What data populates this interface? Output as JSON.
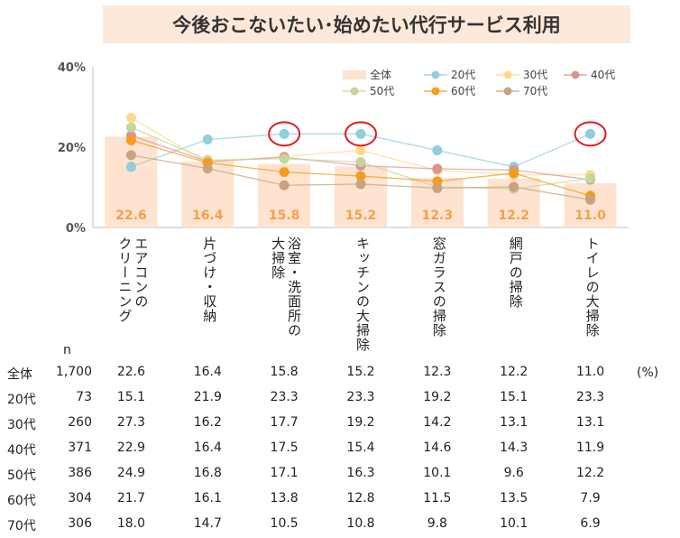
{
  "title": "今後おこないたい･始めたい代行サービス利用",
  "chart_data": {
    "type": "line",
    "categories": [
      "エアコンの\nクリーニング",
      "片づけ・収納",
      "浴室・洗面所の\n大掃除",
      "キッチンの大掃除",
      "窓ガラスの掃除",
      "網戸の掃除",
      "トイレの大掃除"
    ],
    "ylim": [
      0,
      40
    ],
    "yticks": [
      "0%",
      "20%",
      "40%"
    ],
    "grid": false,
    "legend_position": "top-right",
    "bar_series": {
      "name": "全体",
      "values": [
        22.6,
        16.4,
        15.8,
        15.2,
        12.3,
        12.2,
        11.0
      ],
      "color": "#fde3d0",
      "label_color": "#f5a04a"
    },
    "bar_labels": [
      "22.6",
      "16.4",
      "15.8",
      "15.2",
      "12.3",
      "12.2",
      "11.0"
    ],
    "series": [
      {
        "name": "20代",
        "values": [
          15.1,
          21.9,
          23.3,
          23.3,
          19.2,
          15.1,
          23.3
        ],
        "color": "#92cddc"
      },
      {
        "name": "30代",
        "values": [
          27.3,
          16.2,
          17.7,
          19.2,
          14.2,
          13.1,
          13.1
        ],
        "color": "#ffd98a"
      },
      {
        "name": "40代",
        "values": [
          22.9,
          16.4,
          17.5,
          15.4,
          14.6,
          14.3,
          11.9
        ],
        "color": "#d99594"
      },
      {
        "name": "50代",
        "values": [
          24.9,
          16.8,
          17.1,
          16.3,
          10.1,
          9.6,
          12.2
        ],
        "color": "#c3d69b"
      },
      {
        "name": "60代",
        "values": [
          21.7,
          16.1,
          13.8,
          12.8,
          11.5,
          13.5,
          7.9
        ],
        "color": "#f79b1a"
      },
      {
        "name": "70代",
        "values": [
          18.0,
          14.7,
          10.5,
          10.8,
          9.8,
          10.1,
          6.9
        ],
        "color": "#c9a27e"
      }
    ],
    "highlighted_categories": [
      2,
      3,
      6
    ],
    "highlight_color": "#e0191e"
  },
  "table": {
    "n_header": "n",
    "unit": "(%)",
    "rows": [
      {
        "label": "全体",
        "n": "1,700",
        "values": [
          "22.6",
          "16.4",
          "15.8",
          "15.2",
          "12.3",
          "12.2",
          "11.0"
        ]
      },
      {
        "label": "20代",
        "n": "73",
        "values": [
          "15.1",
          "21.9",
          "23.3",
          "23.3",
          "19.2",
          "15.1",
          "23.3"
        ]
      },
      {
        "label": "30代",
        "n": "260",
        "values": [
          "27.3",
          "16.2",
          "17.7",
          "19.2",
          "14.2",
          "13.1",
          "13.1"
        ]
      },
      {
        "label": "40代",
        "n": "371",
        "values": [
          "22.9",
          "16.4",
          "17.5",
          "15.4",
          "14.6",
          "14.3",
          "11.9"
        ]
      },
      {
        "label": "50代",
        "n": "386",
        "values": [
          "24.9",
          "16.8",
          "17.1",
          "16.3",
          "10.1",
          "9.6",
          "12.2"
        ]
      },
      {
        "label": "60代",
        "n": "304",
        "values": [
          "21.7",
          "16.1",
          "13.8",
          "12.8",
          "11.5",
          "13.5",
          "7.9"
        ]
      },
      {
        "label": "70代",
        "n": "306",
        "values": [
          "18.0",
          "14.7",
          "10.5",
          "10.8",
          "9.8",
          "10.1",
          "6.9"
        ]
      }
    ]
  }
}
